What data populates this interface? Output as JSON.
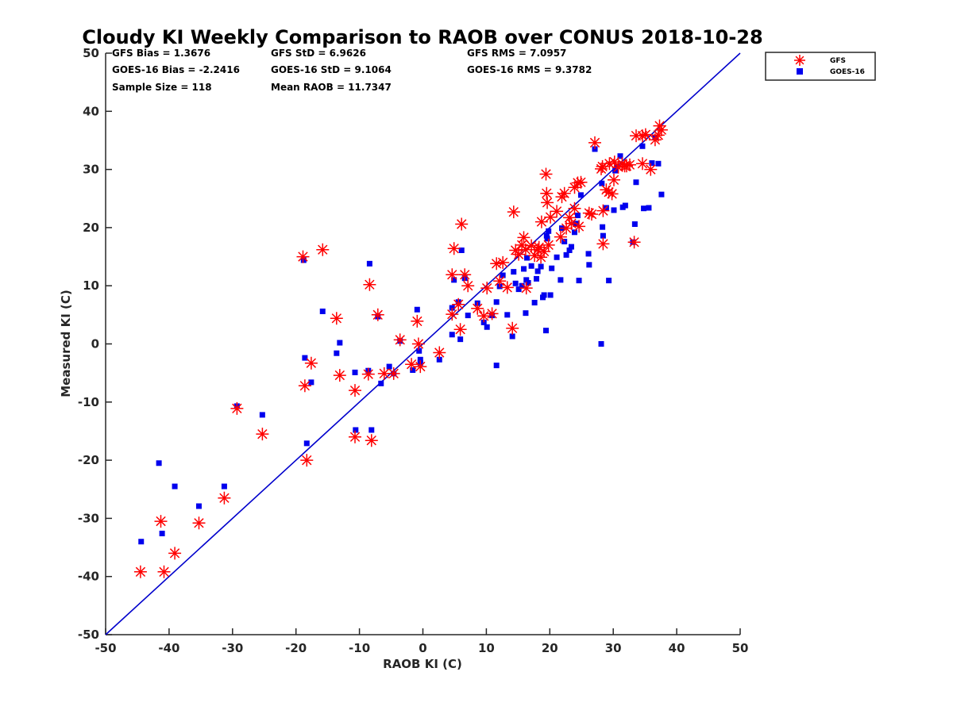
{
  "chart_data": {
    "type": "scatter",
    "title": "Cloudy KI Weekly Comparison to RAOB over CONUS 2018-10-28",
    "xlabel": "RAOB KI (C)",
    "ylabel": "Measured KI (C)",
    "xlim": [
      -50,
      50
    ],
    "ylim": [
      -50,
      50
    ],
    "xticks": [
      "-50",
      "-40",
      "-30",
      "-20",
      "-10",
      "0",
      "10",
      "20",
      "30",
      "40",
      "50"
    ],
    "yticks": [
      "50",
      "40",
      "30",
      "20",
      "10",
      "0",
      "-10",
      "-20",
      "-30",
      "-40",
      "-50"
    ],
    "grid": false,
    "legend_position": "outside top-right",
    "reference_line": "y = x",
    "reference_line_color": "#0000cc",
    "stats": [
      "GFS Bias = 1.3676",
      "GFS StD = 6.9626",
      "GFS RMS = 7.0957",
      "GOES-16 Bias = -2.2416",
      "GOES-16 StD = 9.1064",
      "GOES-16 RMS = 9.3782",
      "Sample Size = 118",
      "Mean RAOB = 11.7347"
    ],
    "series": [
      {
        "name": "GFS",
        "marker": "asterisk",
        "color": "#ff0000",
        "points": [
          [
            -44.5,
            -39.2
          ],
          [
            -41.3,
            -30.5
          ],
          [
            -40.8,
            -39.2
          ],
          [
            -39.1,
            -36.0
          ],
          [
            -35.3,
            -30.8
          ],
          [
            -31.3,
            -26.5
          ],
          [
            -29.3,
            -11.1
          ],
          [
            -25.3,
            -15.5
          ],
          [
            -18.9,
            15.0
          ],
          [
            -18.6,
            -7.2
          ],
          [
            -18.3,
            -20.0
          ],
          [
            -17.6,
            -3.3
          ],
          [
            -15.8,
            16.2
          ],
          [
            -13.6,
            4.4
          ],
          [
            -13.1,
            -5.4
          ],
          [
            -10.7,
            -8.0
          ],
          [
            -10.7,
            -16.0
          ],
          [
            -8.6,
            -5.2
          ],
          [
            -8.4,
            10.2
          ],
          [
            -8.1,
            -16.6
          ],
          [
            -7.1,
            5.0
          ],
          [
            -6.1,
            -5.1
          ],
          [
            -4.6,
            -5.1
          ],
          [
            -3.6,
            0.7
          ],
          [
            -1.8,
            -3.5
          ],
          [
            -0.9,
            3.9
          ],
          [
            -0.7,
            0.0
          ],
          [
            -0.4,
            -3.9
          ],
          [
            2.6,
            -1.5
          ],
          [
            4.6,
            11.9
          ],
          [
            4.6,
            5.1
          ],
          [
            4.9,
            16.4
          ],
          [
            5.6,
            6.8
          ],
          [
            5.9,
            2.5
          ],
          [
            6.1,
            20.6
          ],
          [
            6.6,
            11.9
          ],
          [
            7.1,
            10.0
          ],
          [
            8.6,
            6.1
          ],
          [
            9.6,
            4.8
          ],
          [
            10.1,
            9.6
          ],
          [
            10.9,
            5.2
          ],
          [
            11.6,
            13.8
          ],
          [
            12.1,
            10.8
          ],
          [
            12.6,
            14.0
          ],
          [
            13.3,
            9.7
          ],
          [
            14.1,
            2.7
          ],
          [
            14.3,
            22.7
          ],
          [
            14.6,
            16.1
          ],
          [
            15.1,
            15.4
          ],
          [
            15.6,
            17.0
          ],
          [
            15.9,
            18.3
          ],
          [
            16.2,
            16.2
          ],
          [
            16.3,
            9.6
          ],
          [
            17.1,
            16.9
          ],
          [
            17.6,
            15.2
          ],
          [
            18.1,
            16.2
          ],
          [
            18.3,
            16.6
          ],
          [
            18.6,
            14.9
          ],
          [
            18.7,
            21.0
          ],
          [
            19.1,
            15.9
          ],
          [
            19.4,
            29.2
          ],
          [
            19.5,
            25.9
          ],
          [
            19.6,
            24.3
          ],
          [
            19.8,
            17.0
          ],
          [
            20.1,
            21.8
          ],
          [
            21.1,
            22.8
          ],
          [
            21.7,
            18.4
          ],
          [
            21.9,
            25.3
          ],
          [
            22.3,
            25.9
          ],
          [
            22.6,
            19.9
          ],
          [
            23.1,
            21.7
          ],
          [
            23.4,
            20.7
          ],
          [
            23.9,
            23.3
          ],
          [
            23.9,
            26.9
          ],
          [
            24.4,
            27.7
          ],
          [
            24.6,
            20.2
          ],
          [
            24.9,
            27.8
          ],
          [
            26.2,
            22.5
          ],
          [
            26.6,
            22.3
          ],
          [
            27.1,
            34.6
          ],
          [
            28.1,
            30.1
          ],
          [
            28.3,
            30.5
          ],
          [
            28.4,
            17.2
          ],
          [
            28.4,
            22.9
          ],
          [
            28.9,
            26.5
          ],
          [
            29.3,
            26.1
          ],
          [
            29.4,
            31.0
          ],
          [
            29.8,
            25.8
          ],
          [
            30.1,
            28.2
          ],
          [
            30.2,
            31.3
          ],
          [
            30.8,
            30.4
          ],
          [
            31.4,
            31.0
          ],
          [
            31.8,
            30.6
          ],
          [
            32.1,
            30.6
          ],
          [
            32.6,
            30.8
          ],
          [
            33.3,
            17.5
          ],
          [
            33.6,
            35.8
          ],
          [
            34.6,
            31.0
          ],
          [
            34.6,
            35.8
          ],
          [
            35.1,
            36.0
          ],
          [
            35.9,
            30.0
          ],
          [
            36.6,
            35.1
          ],
          [
            37.1,
            35.9
          ],
          [
            37.3,
            37.5
          ],
          [
            37.6,
            36.8
          ]
        ]
      },
      {
        "name": "GOES-16",
        "marker": "square",
        "color": "#0000ee",
        "points": [
          [
            -44.4,
            -34.0
          ],
          [
            -41.6,
            -20.5
          ],
          [
            -41.1,
            -32.6
          ],
          [
            -39.1,
            -24.5
          ],
          [
            -35.3,
            -27.9
          ],
          [
            -31.3,
            -24.5
          ],
          [
            -29.3,
            -10.7
          ],
          [
            -25.3,
            -12.2
          ],
          [
            -18.8,
            14.4
          ],
          [
            -18.6,
            -2.4
          ],
          [
            -18.3,
            -17.1
          ],
          [
            -17.6,
            -6.6
          ],
          [
            -15.8,
            5.6
          ],
          [
            -13.6,
            -1.6
          ],
          [
            -13.1,
            0.2
          ],
          [
            -10.7,
            -4.9
          ],
          [
            -10.6,
            -14.8
          ],
          [
            -8.6,
            -4.6
          ],
          [
            -8.4,
            13.8
          ],
          [
            -8.1,
            -14.8
          ],
          [
            -7.1,
            4.7
          ],
          [
            -6.6,
            -6.8
          ],
          [
            -5.3,
            -3.9
          ],
          [
            -4.6,
            -5.1
          ],
          [
            -3.6,
            0.5
          ],
          [
            -1.6,
            -4.5
          ],
          [
            -0.9,
            5.9
          ],
          [
            -0.6,
            -1.2
          ],
          [
            -0.4,
            -2.7
          ],
          [
            -0.4,
            -3.3
          ],
          [
            2.6,
            -2.7
          ],
          [
            4.6,
            1.6
          ],
          [
            4.6,
            6.2
          ],
          [
            4.9,
            11.0
          ],
          [
            5.6,
            7.2
          ],
          [
            5.9,
            0.8
          ],
          [
            6.1,
            16.1
          ],
          [
            6.6,
            11.3
          ],
          [
            7.1,
            4.9
          ],
          [
            8.6,
            7.0
          ],
          [
            9.6,
            3.7
          ],
          [
            10.1,
            2.9
          ],
          [
            10.9,
            4.9
          ],
          [
            11.6,
            7.2
          ],
          [
            11.6,
            -3.7
          ],
          [
            12.1,
            9.9
          ],
          [
            12.6,
            11.8
          ],
          [
            13.3,
            5.0
          ],
          [
            14.1,
            1.3
          ],
          [
            14.3,
            12.4
          ],
          [
            14.6,
            10.4
          ],
          [
            15.1,
            9.4
          ],
          [
            15.6,
            10.0
          ],
          [
            15.9,
            12.9
          ],
          [
            16.2,
            5.3
          ],
          [
            16.3,
            11.0
          ],
          [
            16.4,
            14.8
          ],
          [
            16.6,
            10.5
          ],
          [
            17.1,
            13.4
          ],
          [
            17.6,
            7.1
          ],
          [
            17.9,
            11.2
          ],
          [
            18.1,
            12.5
          ],
          [
            18.6,
            13.3
          ],
          [
            18.9,
            8.0
          ],
          [
            19.1,
            8.4
          ],
          [
            19.4,
            2.3
          ],
          [
            19.5,
            18.6
          ],
          [
            19.6,
            18.1
          ],
          [
            19.8,
            19.4
          ],
          [
            20.1,
            8.4
          ],
          [
            20.3,
            13.0
          ],
          [
            21.1,
            14.9
          ],
          [
            21.7,
            11.0
          ],
          [
            21.9,
            19.9
          ],
          [
            22.3,
            17.6
          ],
          [
            22.6,
            15.3
          ],
          [
            23.1,
            16.1
          ],
          [
            23.4,
            16.7
          ],
          [
            23.9,
            19.2
          ],
          [
            24.1,
            20.7
          ],
          [
            24.4,
            22.1
          ],
          [
            24.6,
            10.9
          ],
          [
            24.9,
            25.6
          ],
          [
            26.1,
            15.5
          ],
          [
            26.2,
            13.6
          ],
          [
            27.1,
            33.5
          ],
          [
            28.1,
            0.0
          ],
          [
            28.2,
            27.6
          ],
          [
            28.3,
            20.1
          ],
          [
            28.4,
            18.6
          ],
          [
            28.9,
            23.4
          ],
          [
            29.3,
            10.9
          ],
          [
            30.1,
            23.0
          ],
          [
            30.3,
            29.8
          ],
          [
            30.6,
            30.6
          ],
          [
            31.1,
            32.3
          ],
          [
            31.5,
            23.5
          ],
          [
            31.9,
            23.8
          ],
          [
            33.1,
            17.5
          ],
          [
            33.4,
            20.6
          ],
          [
            33.6,
            27.8
          ],
          [
            34.6,
            34.0
          ],
          [
            34.8,
            23.3
          ],
          [
            35.6,
            23.4
          ],
          [
            36.1,
            31.1
          ],
          [
            36.6,
            35.5
          ],
          [
            37.1,
            31.0
          ],
          [
            37.6,
            25.7
          ]
        ]
      }
    ]
  }
}
